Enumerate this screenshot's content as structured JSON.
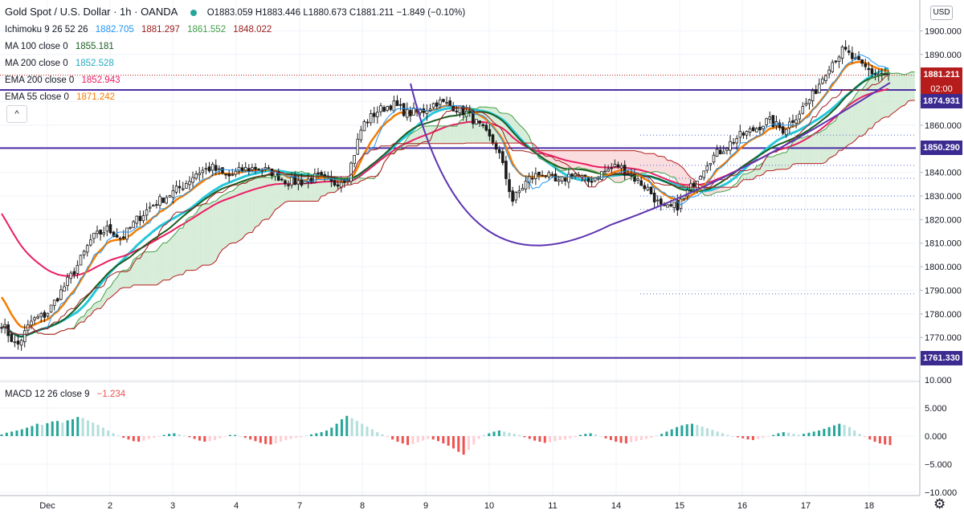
{
  "header": {
    "symbol_title": "Gold Spot / U.S. Dollar · 1h · OANDA",
    "ohlc": {
      "o": "O1883.059",
      "h": "H1883.446",
      "l": "L1880.673",
      "c": "C1881.211",
      "change": "−1.849 (−0.10%)"
    }
  },
  "indicators": [
    {
      "label": "Ichimoku 9 26 52 26",
      "values": [
        {
          "text": "1882.705",
          "color": "#2196f3"
        },
        {
          "text": "1881.297",
          "color": "#9c1c1c"
        },
        {
          "text": "1861.552",
          "color": "#43a047"
        },
        {
          "text": "1848.022",
          "color": "#9c1c1c"
        }
      ]
    },
    {
      "label": "MA 100 close 0",
      "values": [
        {
          "text": "1855.181",
          "color": "#1b5e20"
        }
      ]
    },
    {
      "label": "MA 200 close 0",
      "values": [
        {
          "text": "1852.528",
          "color": "#26c6da"
        }
      ]
    },
    {
      "label": "EMA 200 close 0",
      "values": [
        {
          "text": "1852.943",
          "color": "#e91e63"
        }
      ]
    },
    {
      "label": "EMA 55 close 0",
      "values": [
        {
          "text": "1871.242",
          "color": "#f57c00"
        }
      ]
    }
  ],
  "macd_label": {
    "label": "MACD 12 26 close 9",
    "value": "−1.234"
  },
  "collapse_button": "^",
  "currency_badge": "USD",
  "price_tags": {
    "current": "1881.211",
    "countdown": "02:00",
    "levels": [
      "1874.931",
      "1850.290",
      "1761.330"
    ]
  },
  "colors": {
    "up": "#26a69a",
    "down": "#ef5350",
    "candle_body": "#1b1b1b",
    "tenkan": "#2196f3",
    "kijun": "#9c1c1c",
    "span_a": "#43a047",
    "span_b": "#b71c1c",
    "cloud_bull": "#c8e6c9",
    "cloud_bear": "#f8cfd0",
    "ma100": "#1b5e20",
    "ma200": "#26c6da",
    "ema200": "#e91e63",
    "ema55": "#f57c00",
    "horizontal_line": "#4a2fa3",
    "arc": "#5e35b1"
  },
  "chart_data": [
    {
      "type": "candlestick",
      "title": "Gold Spot / U.S. Dollar · 1h · OANDA",
      "x_ticks": [
        "Dec",
        "2",
        "3",
        "4",
        "7",
        "8",
        "9",
        "10",
        "11",
        "14",
        "15",
        "16",
        "17",
        "18"
      ],
      "y_ticks": [
        "1900.000",
        "1890.000",
        "1880.000",
        "1870.000",
        "1860.000",
        "1850.000",
        "1840.000",
        "1830.000",
        "1820.000",
        "1810.000",
        "1800.000",
        "1790.000",
        "1780.000",
        "1770.000"
      ],
      "ylim": [
        1757,
        1908
      ],
      "close_path": [
        [
          "Nov 30",
          1776
        ],
        [
          "Dec",
          1766
        ],
        [
          "Dec",
          1777
        ],
        [
          "Dec",
          1780
        ],
        [
          "Dec",
          1790
        ],
        [
          "Dec",
          1800
        ],
        [
          "Dec",
          1812
        ],
        [
          "Dec",
          1816
        ],
        [
          "2",
          1812
        ],
        [
          "2",
          1820
        ],
        [
          "2",
          1826
        ],
        [
          "2",
          1830
        ],
        [
          "3",
          1834
        ],
        [
          "3",
          1840
        ],
        [
          "3",
          1842
        ],
        [
          "3",
          1838
        ],
        [
          "4",
          1841
        ],
        [
          "4",
          1842
        ],
        [
          "4",
          1840
        ],
        [
          "4",
          1836
        ],
        [
          "4",
          1836
        ],
        [
          "7",
          1838
        ],
        [
          "7",
          1835
        ],
        [
          "7",
          1838
        ],
        [
          "7",
          1860
        ],
        [
          "8",
          1866
        ],
        [
          "8",
          1869
        ],
        [
          "8",
          1865
        ],
        [
          "8",
          1866
        ],
        [
          "8",
          1870
        ],
        [
          "9",
          1868
        ],
        [
          "9",
          1865
        ],
        [
          "9",
          1858
        ],
        [
          "9",
          1850
        ],
        [
          "10",
          1828
        ],
        [
          "10",
          1837
        ],
        [
          "10",
          1840
        ],
        [
          "10",
          1835
        ],
        [
          "11",
          1840
        ],
        [
          "11",
          1836
        ],
        [
          "11",
          1840
        ],
        [
          "11",
          1843
        ],
        [
          "14",
          1838
        ],
        [
          "14",
          1833
        ],
        [
          "14",
          1824
        ],
        [
          "14",
          1826
        ],
        [
          "15",
          1835
        ],
        [
          "15",
          1845
        ],
        [
          "15",
          1850
        ],
        [
          "16",
          1855
        ],
        [
          "16",
          1858
        ],
        [
          "16",
          1862
        ],
        [
          "16",
          1858
        ],
        [
          "17",
          1865
        ],
        [
          "17",
          1873
        ],
        [
          "17",
          1885
        ],
        [
          "17",
          1892
        ],
        [
          "18",
          1886
        ],
        [
          "18",
          1882
        ],
        [
          "18",
          1881.2
        ]
      ],
      "horizontal_levels": [
        1874.931,
        1850.29,
        1761.33
      ],
      "series": [
        {
          "name": "MA 100 close 0",
          "last": 1855.181
        },
        {
          "name": "MA 200 close 0",
          "last": 1852.528
        },
        {
          "name": "EMA 200 close 0",
          "last": 1852.943
        },
        {
          "name": "EMA 55 close 0",
          "last": 1871.242
        }
      ]
    },
    {
      "type": "bar",
      "title": "MACD 12 26 close 9",
      "y_ticks": [
        "10.000",
        "5.000",
        "0.000",
        "−5.000",
        "−10.000"
      ],
      "ylim": [
        -11.4,
        11.1
      ],
      "last": -1.234,
      "histogram": [
        0.3,
        0.6,
        0.8,
        1.0,
        1.2,
        1.5,
        1.8,
        2.2,
        2.0,
        2.3,
        2.6,
        2.7,
        2.4,
        2.8,
        3.0,
        3.4,
        3.2,
        2.8,
        2.4,
        2.0,
        1.5,
        1.0,
        0.5,
        0.1,
        -0.3,
        -0.6,
        -0.9,
        -1.0,
        -0.8,
        -0.5,
        -0.3,
        -0.1,
        0.2,
        0.4,
        0.5,
        0.3,
        0.1,
        -0.2,
        -0.5,
        -0.8,
        -1.0,
        -0.9,
        -0.7,
        -0.4,
        -0.1,
        0.2,
        0.2,
        0.0,
        -0.3,
        -0.6,
        -0.9,
        -1.2,
        -1.4,
        -1.5,
        -1.3,
        -1.0,
        -0.7,
        -0.5,
        -0.3,
        -0.2,
        0.1,
        0.3,
        0.5,
        0.7,
        1.0,
        1.5,
        2.2,
        3.0,
        3.6,
        3.2,
        2.7,
        2.2,
        1.7,
        1.2,
        0.7,
        0.3,
        -0.2,
        -0.6,
        -1.0,
        -1.3,
        -1.6,
        -1.4,
        -1.1,
        -0.8,
        -0.5,
        -0.6,
        -0.9,
        -1.3,
        -1.7,
        -2.2,
        -2.8,
        -3.3,
        -2.5,
        -1.5,
        -0.5,
        0.2,
        0.5,
        0.8,
        1.0,
        0.8,
        0.6,
        0.4,
        0.2,
        -0.2,
        -0.5,
        -0.8,
        -1.0,
        -1.2,
        -1.1,
        -0.9,
        -0.7,
        -0.6,
        -0.4,
        -0.2,
        0.2,
        0.4,
        0.5,
        0.3,
        -0.1,
        -0.4,
        -0.7,
        -1.0,
        -1.2,
        -1.3,
        -1.1,
        -0.9,
        -0.7,
        -0.5,
        -0.3,
        0.1,
        0.4,
        0.8,
        1.2,
        1.6,
        1.9,
        2.1,
        2.2,
        2.0,
        1.7,
        1.4,
        1.1,
        0.8,
        0.5,
        0.2,
        0.0,
        -0.2,
        -0.4,
        -0.6,
        -0.7,
        -0.5,
        -0.3,
        -0.1,
        0.2,
        0.5,
        0.7,
        0.6,
        0.4,
        0.2,
        0.4,
        0.6,
        0.8,
        1.0,
        1.3,
        1.6,
        1.9,
        2.2,
        2.0,
        1.6,
        1.0,
        0.4,
        -0.2,
        -0.6,
        -1.0,
        -1.3,
        -1.5,
        -1.6
      ]
    }
  ]
}
